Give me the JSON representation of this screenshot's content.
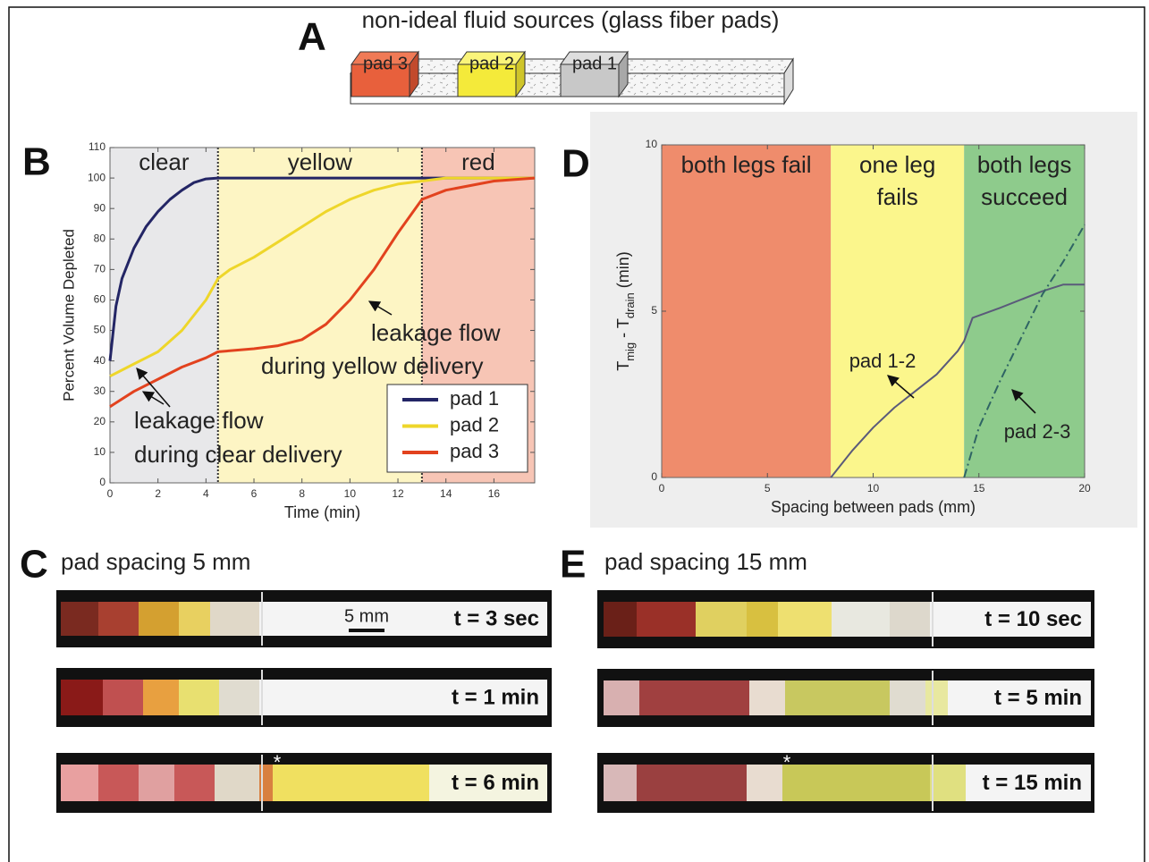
{
  "panel_a": {
    "letter": "A",
    "title": "non-ideal fluid sources (glass fiber pads)",
    "pads": [
      "pad 3",
      "pad 2",
      "pad 1"
    ]
  },
  "chart_data": [
    {
      "panel": "B",
      "type": "line",
      "xlabel": "Time (min)",
      "ylabel": "Percent Volume Depleted",
      "xlim": [
        0,
        17.7
      ],
      "xticks": [
        0,
        2,
        4,
        6,
        8,
        10,
        12,
        14,
        16
      ],
      "ylim": [
        0,
        110
      ],
      "yticks": [
        0,
        10,
        20,
        30,
        40,
        50,
        60,
        70,
        80,
        90,
        100,
        110
      ],
      "region_dividers": "dotted",
      "regions": [
        {
          "label": "clear",
          "from": 0,
          "to": 4.5,
          "color": "#e8e8ea",
          "label_color": "#5a5a8a"
        },
        {
          "label": "yellow",
          "from": 4.5,
          "to": 13,
          "color": "#fdf5c4",
          "label_color": "#c8c83c"
        },
        {
          "label": "red",
          "from": 13,
          "to": 17.7,
          "color": "#f7c5b5",
          "label_color": "#d04a3a"
        }
      ],
      "annotations": [
        [
          "leakage flow",
          "during clear delivery"
        ],
        [
          "leakage flow",
          "during yellow delivery"
        ]
      ],
      "legend": "lower right",
      "series": [
        {
          "name": "pad 1",
          "color": "#232565",
          "x": [
            0,
            0.25,
            0.5,
            1,
            1.5,
            2,
            2.5,
            3,
            3.5,
            4,
            4.5,
            6,
            8,
            10,
            12,
            14,
            16,
            17.7
          ],
          "values": [
            40,
            58,
            67,
            77,
            84,
            89,
            93,
            96,
            98.5,
            99.7,
            100,
            100,
            100,
            100,
            100,
            100,
            100,
            100
          ]
        },
        {
          "name": "pad 2",
          "color": "#eed62a",
          "x": [
            0,
            1,
            1.5,
            2,
            3,
            4,
            4.5,
            5,
            6,
            7,
            8,
            9,
            10,
            11,
            12,
            13,
            14,
            16,
            17.7
          ],
          "values": [
            35,
            39,
            41,
            43,
            50,
            60,
            67,
            70,
            74,
            79,
            84,
            89,
            93,
            96,
            98,
            99,
            100,
            100,
            100
          ]
        },
        {
          "name": "pad 3",
          "color": "#e2421e",
          "x": [
            0,
            1,
            2,
            3,
            4,
            4.5,
            6,
            7,
            8,
            9,
            10,
            11,
            12,
            13,
            14,
            16,
            17.7
          ],
          "values": [
            25,
            30,
            34,
            38,
            41,
            43,
            44,
            45,
            47,
            52,
            60,
            70,
            82,
            93,
            96,
            99,
            100
          ]
        }
      ]
    },
    {
      "panel": "D",
      "type": "line",
      "xlabel": "Spacing between pads (mm)",
      "ylabel_parts": [
        "T",
        "mig",
        " - T",
        "drain",
        " (min)"
      ],
      "xlim": [
        0,
        20
      ],
      "xticks": [
        0,
        5,
        10,
        15,
        20
      ],
      "ylim": [
        0,
        10
      ],
      "yticks": [
        0,
        5,
        10
      ],
      "series_labels": true,
      "regions": [
        {
          "label": [
            "both legs fail"
          ],
          "from": 0,
          "to": 8,
          "color": "#ef8c6c"
        },
        {
          "label": [
            "one leg",
            "fails"
          ],
          "from": 8,
          "to": 14.3,
          "color": "#fbf68c"
        },
        {
          "label": [
            "both legs",
            "succeed"
          ],
          "from": 14.3,
          "to": 20,
          "color": "#8ecb8c"
        }
      ],
      "series": [
        {
          "name": "pad 1-2",
          "color": "#5a5a7a",
          "dash": "solid",
          "x": [
            8,
            9,
            10,
            11,
            12,
            13,
            14,
            14.3,
            14.7,
            16,
            18,
            19,
            20
          ],
          "values": [
            0,
            0.8,
            1.5,
            2.1,
            2.6,
            3.1,
            3.8,
            4.1,
            4.8,
            5.1,
            5.6,
            5.8,
            5.8
          ]
        },
        {
          "name": "pad 2-3",
          "color": "#2f6464",
          "dash": "dashdot",
          "x": [
            14.3,
            15,
            16,
            17,
            18,
            19,
            20
          ],
          "values": [
            0,
            1.5,
            2.9,
            4.2,
            5.5,
            6.5,
            7.6
          ]
        }
      ]
    }
  ],
  "panel_c": {
    "letter": "C",
    "title": "pad spacing 5 mm",
    "scale_bar": "5 mm",
    "times": [
      "t = 3 sec",
      "t = 1 min",
      "t = 6 min"
    ],
    "marker": "*"
  },
  "panel_e": {
    "letter": "E",
    "title": "pad spacing 15 mm",
    "times": [
      "t = 10 sec",
      "t = 5 min",
      "t = 15 min"
    ],
    "marker": "*"
  }
}
